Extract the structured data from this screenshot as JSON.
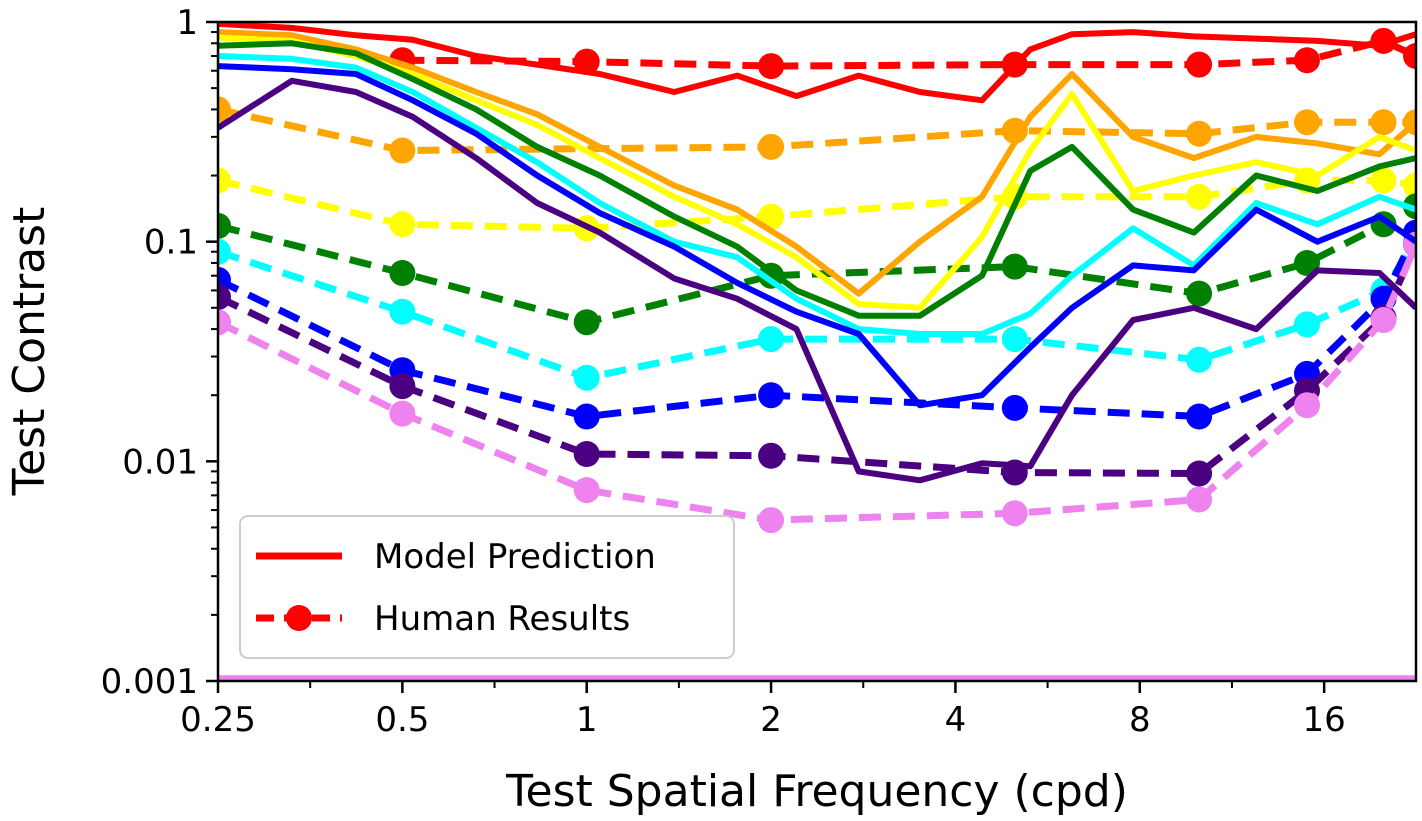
{
  "chart_data": {
    "type": "line",
    "title": "",
    "xlabel": "Test Spatial Frequency (cpd)",
    "ylabel": "Test Contrast",
    "x_scale": "log2",
    "y_scale": "log10",
    "xlim": [
      0.25,
      22.6
    ],
    "ylim": [
      0.001,
      1
    ],
    "x_ticks": [
      0.25,
      0.5,
      1,
      2,
      4,
      8,
      16
    ],
    "x_tick_labels": [
      "0.25",
      "0.5",
      "1",
      "2",
      "4",
      "8",
      "16"
    ],
    "y_ticks": [
      0.001,
      0.01,
      0.1,
      1
    ],
    "y_tick_labels": [
      "0.001",
      "0.01",
      "0.1",
      "1"
    ],
    "grid": false,
    "legend": {
      "placement": "lower-left",
      "entries": [
        {
          "label": "Model Prediction",
          "style": "solid"
        },
        {
          "label": "Human Results",
          "style": "dashed-marker"
        }
      ]
    },
    "model_x": [
      0.25,
      0.33,
      0.42,
      0.52,
      0.66,
      0.83,
      1.05,
      1.39,
      1.76,
      2.2,
      2.78,
      3.5,
      4.42,
      5.3,
      6.2,
      7.8,
      9.8,
      12.4,
      15.6,
      19.7,
      22.6
    ],
    "series": [
      {
        "color": "#ff0000",
        "model": [
          0.98,
          0.94,
          0.87,
          0.83,
          0.7,
          0.64,
          0.58,
          0.48,
          0.57,
          0.46,
          0.57,
          0.48,
          0.44,
          0.75,
          0.88,
          0.9,
          0.86,
          0.84,
          0.82,
          0.78,
          0.88
        ],
        "human_x": [
          0.5,
          1,
          2,
          5,
          10,
          15,
          20,
          22.6
        ],
        "human": [
          0.67,
          0.66,
          0.63,
          0.64,
          0.64,
          0.67,
          0.82,
          0.7
        ]
      },
      {
        "color": "#ffa500",
        "model": [
          0.9,
          0.87,
          0.75,
          0.62,
          0.48,
          0.38,
          0.27,
          0.18,
          0.14,
          0.095,
          0.058,
          0.1,
          0.16,
          0.37,
          0.58,
          0.3,
          0.24,
          0.3,
          0.28,
          0.25,
          0.35
        ],
        "human_x": [
          0.25,
          0.5,
          2,
          5,
          10,
          15,
          20,
          22.6
        ],
        "human": [
          0.4,
          0.26,
          0.27,
          0.32,
          0.31,
          0.35,
          0.35,
          0.35
        ]
      },
      {
        "color": "#ffff00",
        "model": [
          0.85,
          0.82,
          0.7,
          0.58,
          0.44,
          0.34,
          0.24,
          0.16,
          0.12,
          0.085,
          0.052,
          0.05,
          0.105,
          0.26,
          0.47,
          0.17,
          0.2,
          0.23,
          0.2,
          0.3,
          0.26
        ],
        "human_x": [
          0.25,
          0.5,
          1,
          2,
          5,
          10,
          15,
          20,
          22.6
        ],
        "human": [
          0.19,
          0.12,
          0.115,
          0.13,
          0.16,
          0.16,
          0.19,
          0.19,
          0.18
        ]
      },
      {
        "color": "#008000",
        "model": [
          0.78,
          0.8,
          0.72,
          0.55,
          0.4,
          0.27,
          0.2,
          0.13,
          0.095,
          0.06,
          0.046,
          0.046,
          0.07,
          0.21,
          0.27,
          0.14,
          0.11,
          0.2,
          0.17,
          0.22,
          0.24
        ],
        "human_x": [
          0.25,
          0.5,
          1,
          2,
          5,
          10,
          15,
          20,
          22.6
        ],
        "human": [
          0.118,
          0.072,
          0.043,
          0.07,
          0.077,
          0.058,
          0.08,
          0.12,
          0.145
        ]
      },
      {
        "color": "#00ffff",
        "model": [
          0.7,
          0.68,
          0.62,
          0.48,
          0.33,
          0.23,
          0.15,
          0.1,
          0.085,
          0.055,
          0.04,
          0.038,
          0.038,
          0.047,
          0.07,
          0.115,
          0.078,
          0.15,
          0.12,
          0.16,
          0.14
        ],
        "human_x": [
          0.25,
          0.5,
          1,
          2,
          5,
          10,
          15,
          20,
          22.6
        ],
        "human": [
          0.09,
          0.048,
          0.024,
          0.036,
          0.036,
          0.029,
          0.042,
          0.06,
          0.1
        ]
      },
      {
        "color": "#0000ff",
        "model": [
          0.63,
          0.61,
          0.58,
          0.44,
          0.31,
          0.2,
          0.135,
          0.095,
          0.065,
          0.048,
          0.038,
          0.018,
          0.02,
          0.033,
          0.05,
          0.078,
          0.074,
          0.14,
          0.1,
          0.13,
          0.1
        ],
        "human_x": [
          0.25,
          0.5,
          1,
          2,
          5,
          10,
          15,
          20,
          22.6
        ],
        "human": [
          0.067,
          0.026,
          0.016,
          0.02,
          0.0175,
          0.016,
          0.025,
          0.055,
          0.11
        ]
      },
      {
        "color": "#4b0082",
        "model": [
          0.33,
          0.54,
          0.48,
          0.37,
          0.24,
          0.15,
          0.11,
          0.068,
          0.055,
          0.04,
          0.009,
          0.0082,
          0.0098,
          0.0095,
          0.02,
          0.044,
          0.05,
          0.04,
          0.074,
          0.072,
          0.05
        ],
        "human_x": [
          0.25,
          0.5,
          1,
          2,
          5,
          10,
          15,
          20,
          22.6
        ],
        "human": [
          0.056,
          0.022,
          0.0108,
          0.0106,
          0.0089,
          0.0088,
          0.021,
          0.045,
          0.097
        ]
      },
      {
        "color": "#ee82ee",
        "model": [
          0.00103,
          0.00103,
          0.00103,
          0.00103,
          0.00103,
          0.00103,
          0.00103,
          0.00103,
          0.00103,
          0.00103,
          0.00103,
          0.00103,
          0.00103,
          0.00103,
          0.00103,
          0.00103,
          0.00103,
          0.00103,
          0.00103,
          0.00103,
          0.00103
        ],
        "human_x": [
          0.25,
          0.5,
          1,
          2,
          5,
          10,
          15,
          20,
          22.6
        ],
        "human": [
          0.043,
          0.0165,
          0.0074,
          0.0054,
          0.0058,
          0.0067,
          0.018,
          0.044,
          0.097
        ]
      }
    ]
  }
}
